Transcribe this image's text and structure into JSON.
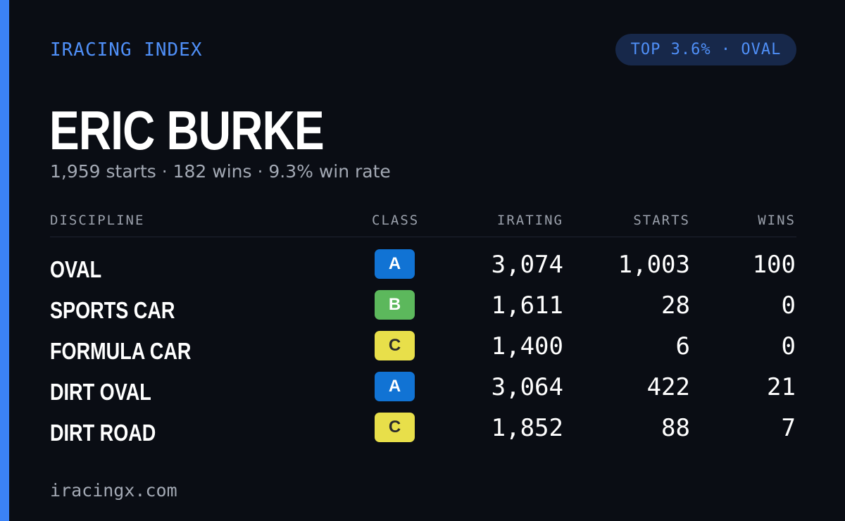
{
  "brand": "IRACING INDEX",
  "rank_badge": "TOP 3.6% · OVAL",
  "driver_name": "ERIC BURKE",
  "summary": "1,959 starts · 182 wins · 9.3% win rate",
  "table": {
    "headers": {
      "discipline": "DISCIPLINE",
      "class": "CLASS",
      "irating": "IRATING",
      "starts": "STARTS",
      "wins": "WINS"
    },
    "rows": [
      {
        "discipline": "OVAL",
        "class": "A",
        "irating": "3,074",
        "starts": "1,003",
        "wins": "100"
      },
      {
        "discipline": "SPORTS CAR",
        "class": "B",
        "irating": "1,611",
        "starts": "28",
        "wins": "0"
      },
      {
        "discipline": "FORMULA CAR",
        "class": "C",
        "irating": "1,400",
        "starts": "6",
        "wins": "0"
      },
      {
        "discipline": "DIRT OVAL",
        "class": "A",
        "irating": "3,064",
        "starts": "422",
        "wins": "21"
      },
      {
        "discipline": "DIRT ROAD",
        "class": "C",
        "irating": "1,852",
        "starts": "88",
        "wins": "7"
      }
    ]
  },
  "class_colors": {
    "A": "#1173d4",
    "B": "#5cb85c",
    "C": "#e8df4a"
  },
  "accent_color": "#3b82f6",
  "footer": "iracingx.com"
}
